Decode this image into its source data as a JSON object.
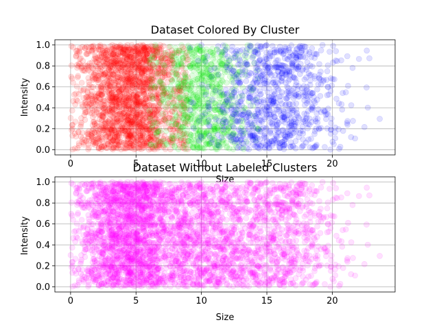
{
  "chart_data": [
    {
      "type": "scatter",
      "title": "Dataset Colored By Cluster",
      "xlabel": "Size",
      "ylabel": "Intensity",
      "xlim": [
        -1.2,
        24.8
      ],
      "ylim": [
        -0.05,
        1.05
      ],
      "xticks": [
        0,
        5,
        10,
        15,
        20
      ],
      "yticks": [
        0.0,
        0.2,
        0.4,
        0.6,
        0.8,
        1.0
      ],
      "grid": true,
      "marker_alpha": 0.12,
      "series": [
        {
          "color": "#ff0000",
          "x_center": 4.5,
          "x_spread": 2.0,
          "x_range": [
            0,
            9
          ],
          "count": 1900
        },
        {
          "color": "#00e600",
          "x_center": 10.0,
          "x_spread": 1.8,
          "x_range": [
            6,
            14.5
          ],
          "count": 800
        },
        {
          "color": "#0000ff",
          "x_center": 15.5,
          "x_spread": 2.6,
          "x_range": [
            9,
            24
          ],
          "count": 900
        }
      ]
    },
    {
      "type": "scatter",
      "title": "Dataset Without Labeled Clusters",
      "xlabel": "Size",
      "ylabel": "Intensity",
      "xlim": [
        -1.2,
        24.8
      ],
      "ylim": [
        -0.05,
        1.05
      ],
      "xticks": [
        0,
        5,
        10,
        15,
        20
      ],
      "yticks": [
        0.0,
        0.2,
        0.4,
        0.6,
        0.8,
        1.0
      ],
      "grid": true,
      "marker_alpha": 0.12,
      "series": [
        {
          "color": "#ff00ff",
          "x_center": 4.5,
          "x_spread": 2.0,
          "x_range": [
            0,
            9
          ],
          "count": 1900
        },
        {
          "color": "#ff00ff",
          "x_center": 10.0,
          "x_spread": 1.8,
          "x_range": [
            6,
            14.5
          ],
          "count": 800
        },
        {
          "color": "#ff00ff",
          "x_center": 15.5,
          "x_spread": 2.6,
          "x_range": [
            9,
            24
          ],
          "count": 900
        }
      ]
    }
  ]
}
